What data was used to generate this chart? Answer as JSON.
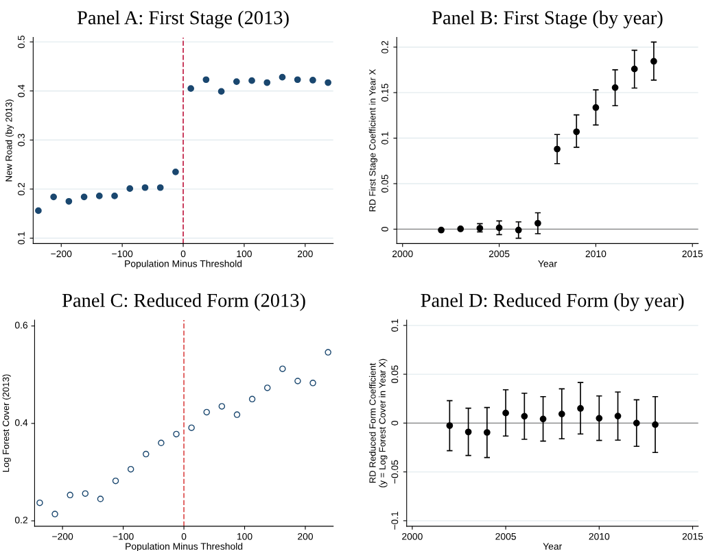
{
  "chart_data": [
    {
      "type": "scatter",
      "title": "Panel A: First Stage (2013)",
      "xlabel": "Population Minus Threshold",
      "ylabel": "New Road (by 2013)",
      "x": [
        -237.5,
        -212.5,
        -187.5,
        -162.5,
        -137.5,
        -112.5,
        -87.5,
        -62.5,
        -37.5,
        -12.5,
        12.5,
        37.5,
        62.5,
        87.5,
        112.5,
        137.5,
        162.5,
        187.5,
        212.5,
        237.5
      ],
      "series": [
        {
          "color": "#1a476f",
          "values": [
            0.156,
            0.184,
            0.175,
            0.184,
            0.186,
            0.186,
            0.201,
            0.203,
            0.203,
            0.235,
            0.405,
            0.423,
            0.399,
            0.419,
            0.421,
            0.417,
            0.428,
            0.423,
            0.422,
            0.417
          ]
        }
      ],
      "xlim": [
        -246,
        246
      ],
      "xticks": [
        -200,
        -100,
        0,
        100,
        200
      ],
      "ylim": [
        0.089,
        0.509
      ],
      "yticks": [
        0.1,
        0.2,
        0.3,
        0.4,
        0.5
      ],
      "ref_lines": [
        {
          "axis": "x",
          "value": 0,
          "color": "#c8385a",
          "line_style": "dashed"
        }
      ],
      "grid": "y",
      "marker": "circle"
    },
    {
      "type": "scatter",
      "title": "Panel B: First Stage (by year)",
      "xlabel": "Year",
      "ylabel": "RD First Stage Coefficient in Year X",
      "x": [
        2002,
        2003,
        2004,
        2005,
        2006,
        2007,
        2008,
        2009,
        2010,
        2011,
        2012,
        2013
      ],
      "series": [
        {
          "color": "#000000",
          "values": [
            -0.001,
            0.0003,
            0.001,
            0.0015,
            -0.001,
            0.0065,
            0.088,
            0.107,
            0.1336,
            0.1555,
            0.176,
            0.1844
          ],
          "errors": [
            null,
            null,
            [
              -0.003,
              0.006
            ],
            [
              -0.006,
              0.009
            ],
            [
              -0.01,
              0.008
            ],
            [
              -0.005,
              0.018
            ],
            [
              0.072,
              0.104
            ],
            [
              0.09,
              0.1255
            ],
            [
              0.1145,
              0.153
            ],
            [
              0.1356,
              0.175
            ],
            [
              0.155,
              0.1965
            ],
            [
              0.1638,
              0.2055
            ]
          ]
        }
      ],
      "xlim": [
        1999.7,
        2015.3
      ],
      "xticks": [
        2000,
        2005,
        2010,
        2015
      ],
      "ylim": [
        -0.0158,
        0.2106
      ],
      "yticks": [
        0,
        0.05,
        0.1,
        0.15,
        0.2
      ],
      "ref_lines": [
        {
          "axis": "y",
          "value": 0,
          "color": "#808080",
          "line_style": "solid"
        }
      ],
      "grid": "y",
      "marker": "circle"
    },
    {
      "type": "scatter",
      "title": "Panel C: Reduced Form (2013)",
      "xlabel": "Population Minus Threshold",
      "ylabel": "Log Forest Cover (2013)",
      "x": [
        -237.5,
        -212.5,
        -187.5,
        -162.5,
        -137.5,
        -112.5,
        -87.5,
        -62.5,
        -37.5,
        -12.5,
        12.5,
        37.5,
        62.5,
        87.5,
        112.5,
        137.5,
        162.5,
        187.5,
        212.5,
        237.5
      ],
      "series": [
        {
          "color": "#1a476f",
          "values": [
            0.237,
            0.214,
            0.253,
            0.256,
            0.245,
            0.282,
            0.306,
            0.337,
            0.36,
            0.378,
            0.391,
            0.423,
            0.435,
            0.418,
            0.45,
            0.473,
            0.512,
            0.487,
            0.483,
            0.546
          ]
        }
      ],
      "xlim": [
        -246,
        246
      ],
      "xticks": [
        -200,
        -100,
        0,
        100,
        200
      ],
      "ylim": [
        0.189,
        0.612
      ],
      "yticks": [
        0.2,
        0.4,
        0.6
      ],
      "ref_lines": [
        {
          "axis": "x",
          "value": 0,
          "color": "#e06060",
          "line_style": "dashed"
        }
      ],
      "marker": "circle"
    },
    {
      "type": "scatter",
      "title": "Panel D: Reduced Form (by year)",
      "xlabel": "Year",
      "ylabel": "RD Reduced Form Coefficient\n(y = Log Forest Cover in Year X)",
      "x": [
        2002,
        2003,
        2004,
        2005,
        2006,
        2007,
        2008,
        2009,
        2010,
        2011,
        2012,
        2013
      ],
      "series": [
        {
          "color": "#000000",
          "values": [
            -0.0026,
            -0.0091,
            -0.0096,
            0.0103,
            0.007,
            0.0042,
            0.0093,
            0.015,
            0.0049,
            0.0072,
            0.0,
            -0.0016
          ],
          "errors": [
            [
              -0.0283,
              0.0229
            ],
            [
              -0.0332,
              0.0152
            ],
            [
              -0.0353,
              0.0159
            ],
            [
              -0.0133,
              0.0341
            ],
            [
              -0.0166,
              0.0306
            ],
            [
              -0.0185,
              0.0271
            ],
            [
              -0.0161,
              0.035
            ],
            [
              -0.0112,
              0.0416
            ],
            [
              -0.0178,
              0.0278
            ],
            [
              -0.0175,
              0.0318
            ],
            [
              -0.0238,
              0.0238
            ],
            [
              -0.0301,
              0.0271
            ]
          ]
        }
      ],
      "xlim": [
        1999.7,
        2015.3
      ],
      "xticks": [
        2000,
        2005,
        2010,
        2015
      ],
      "ylim": [
        -0.1056,
        0.1054
      ],
      "yticks": [
        -0.1,
        -0.05,
        0,
        0.05,
        0.1
      ],
      "ref_lines": [
        {
          "axis": "y",
          "value": 0,
          "color": "#808080",
          "line_style": "solid"
        }
      ],
      "grid": "y",
      "marker": "circle"
    }
  ]
}
